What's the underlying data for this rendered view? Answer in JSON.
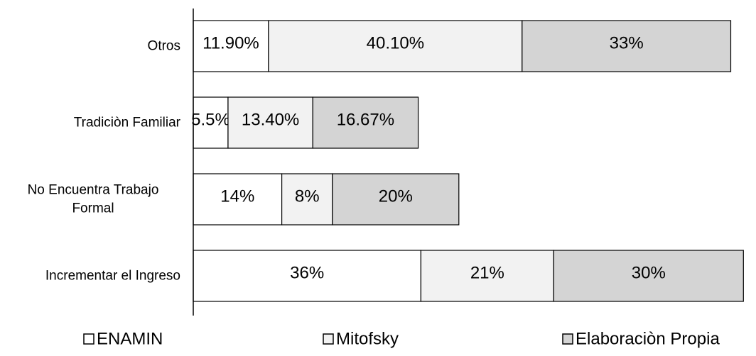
{
  "chart_data": {
    "type": "bar",
    "orientation": "horizontal",
    "stacked": true,
    "categories": [
      "Otros",
      "Tradiciòn Familiar",
      "No Encuentra Trabajo Formal",
      "Incrementar el Ingreso"
    ],
    "series": [
      {
        "name": "ENAMIN",
        "color": "#ffffff",
        "values": [
          11.9,
          5.5,
          14,
          36
        ],
        "labels": [
          "11.90%",
          "5.5%",
          "14%",
          "36%"
        ]
      },
      {
        "name": "Mitofsky",
        "color": "#f2f2f2",
        "values": [
          40.1,
          13.4,
          8,
          21
        ],
        "labels": [
          "40.10%",
          "13.40%",
          "8%",
          "21%"
        ]
      },
      {
        "name": "Elaboraciòn Propia",
        "color": "#d4d4d4",
        "values": [
          33,
          16.67,
          20,
          30
        ],
        "labels": [
          "33%",
          "16.67%",
          "20%",
          "30%"
        ]
      }
    ],
    "xlim": [
      0,
      90
    ],
    "grid": false,
    "legend_position": "bottom"
  }
}
